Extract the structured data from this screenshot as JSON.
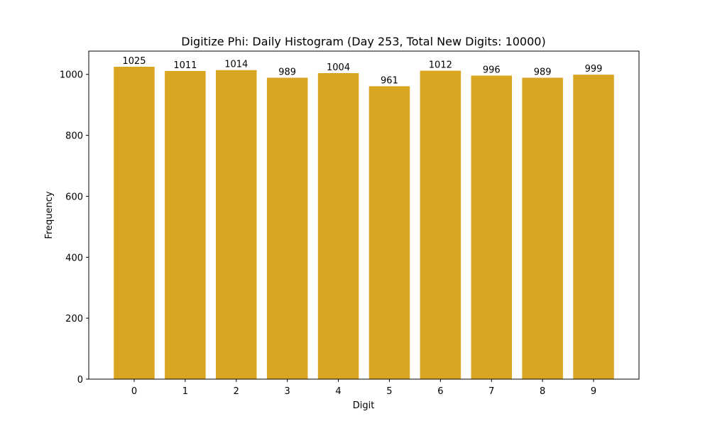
{
  "chart_data": {
    "type": "bar",
    "title": "Digitize Phi: Daily Histogram (Day 253, Total New Digits: 10000)",
    "x_label": "Digit",
    "y_label": "Frequency",
    "categories": [
      "0",
      "1",
      "2",
      "3",
      "4",
      "5",
      "6",
      "7",
      "8",
      "9"
    ],
    "values": [
      1025,
      1011,
      1014,
      989,
      1004,
      961,
      1012,
      996,
      989,
      999
    ],
    "color": "#daa520",
    "ylim": [
      0,
      1076.25
    ],
    "yticks": [
      0,
      200,
      400,
      600,
      800,
      1000
    ],
    "grid": false
  }
}
